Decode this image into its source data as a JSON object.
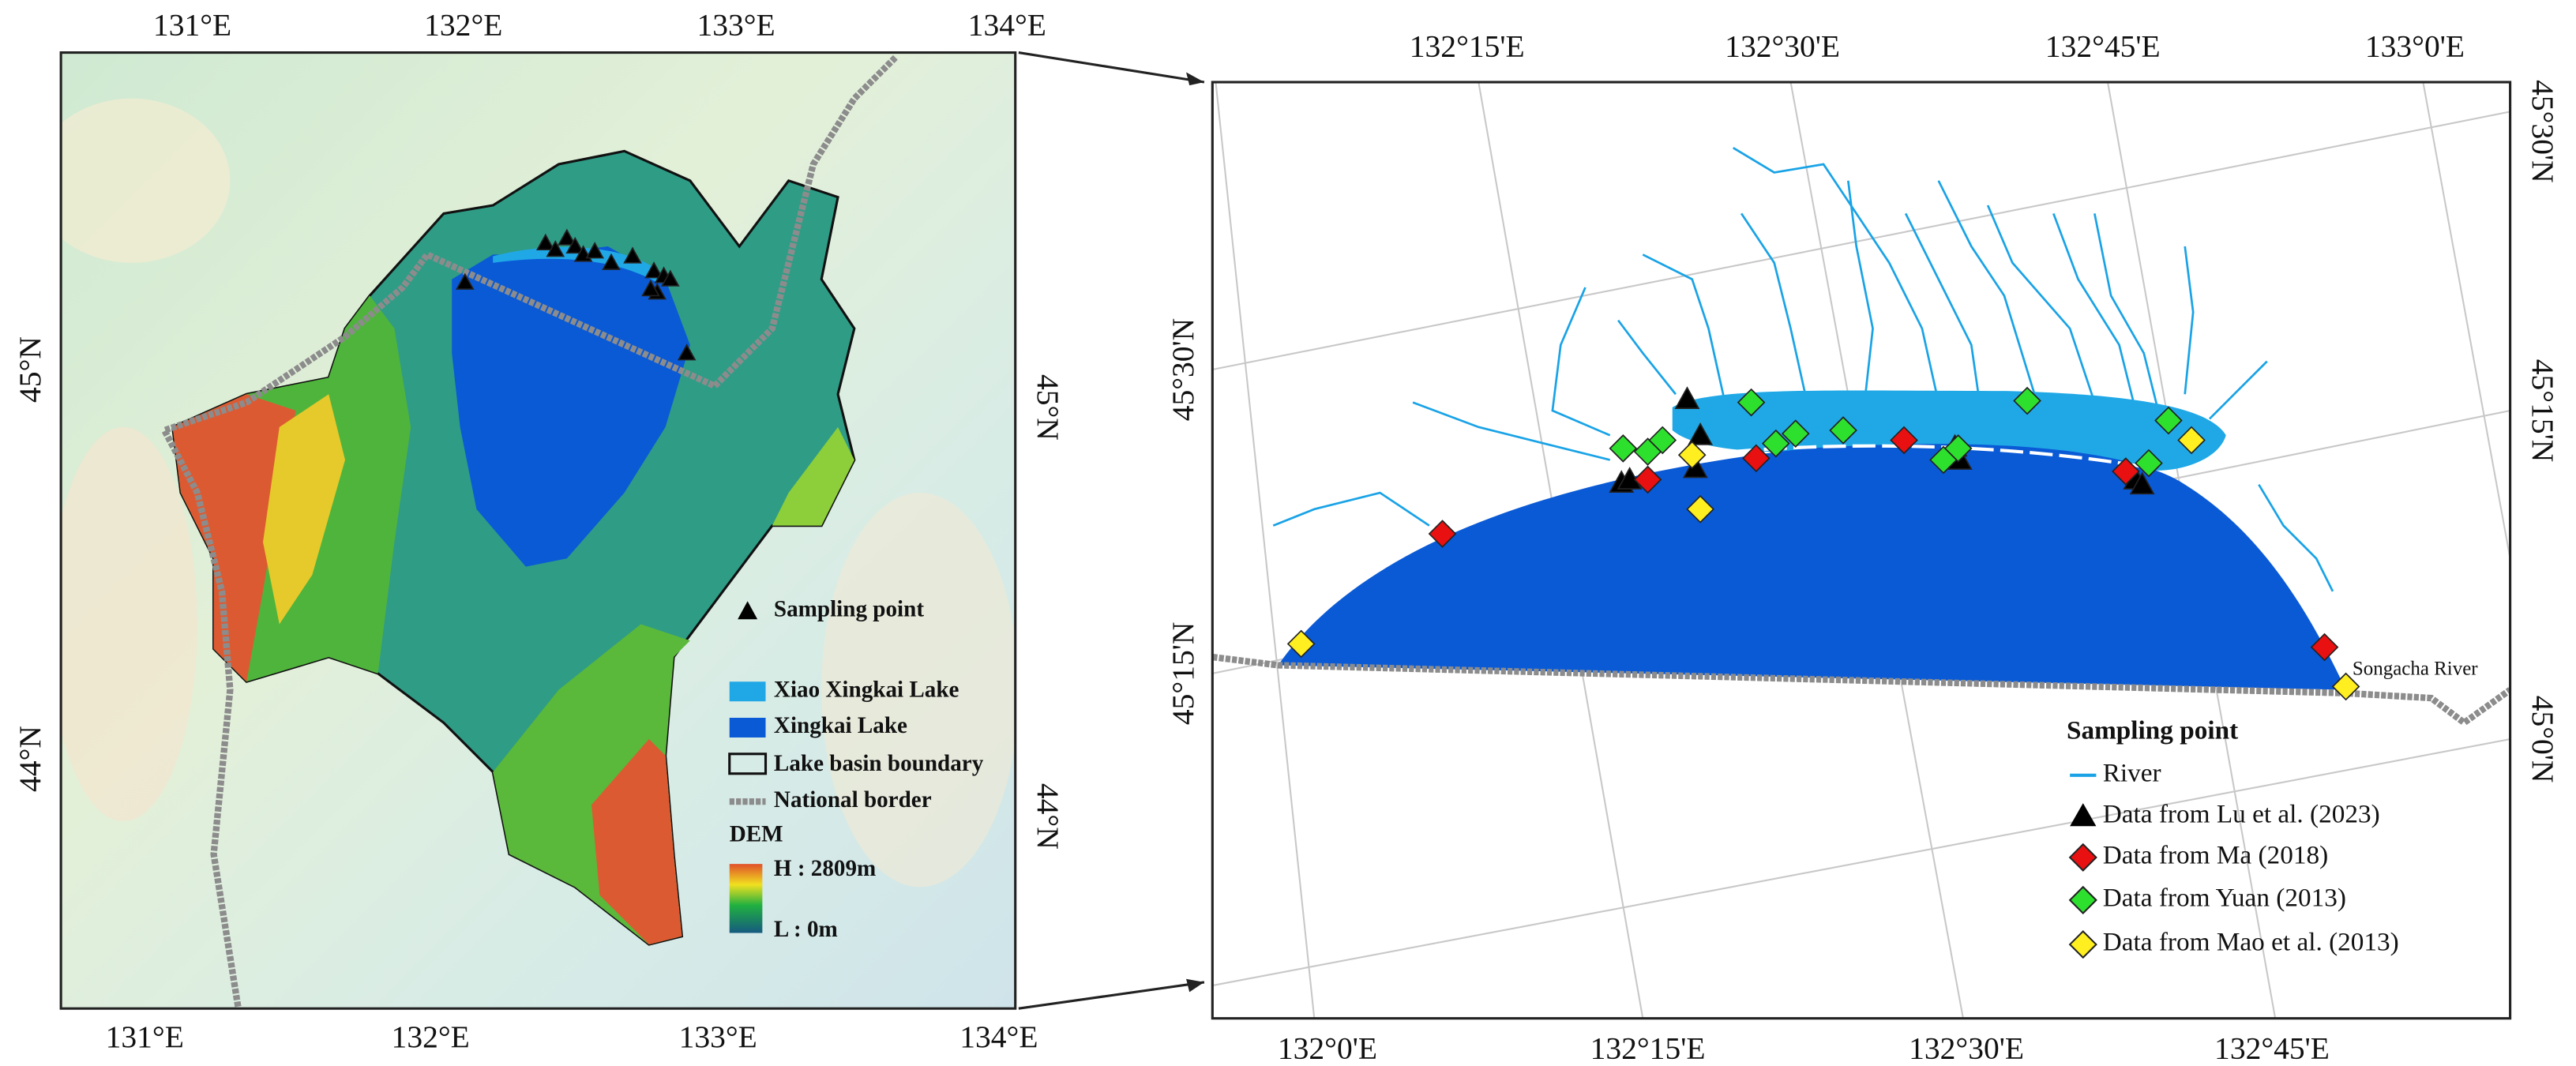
{
  "left_map": {
    "top_labels": [
      "131°E",
      "132°E",
      "133°E",
      "134°E"
    ],
    "bottom_labels": [
      "131°E",
      "132°E",
      "133°E",
      "134°E"
    ],
    "left_labels": [
      "45°N",
      "44°N"
    ],
    "right_labels": [
      "45°N",
      "44°N"
    ],
    "legend": {
      "items": [
        "Sampling point",
        "Xiao Xingkai Lake",
        "Xingkai Lake",
        "Lake basin boundary",
        "National border"
      ],
      "dem_title": "DEM",
      "dem_high": "H : 2809m",
      "dem_low": "L : 0m"
    }
  },
  "right_map": {
    "top_labels": [
      "132°15'E",
      "132°30'E",
      "132°45'E",
      "133°0'E"
    ],
    "bottom_labels": [
      "132°0'E",
      "132°15'E",
      "132°30'E",
      "132°45'E"
    ],
    "left_labels": [
      "45°30'N",
      "45°15'N"
    ],
    "right_labels": [
      "45°30'N",
      "45°15'N",
      "45°0'N"
    ],
    "river_label": "Songacha River",
    "legend": {
      "title": "Sampling point",
      "items": [
        "River",
        "Data from Lu et al. (2023)",
        "Data from Ma (2018)",
        "Data from Yuan (2013)",
        "Data from Mao et al. (2013)"
      ]
    }
  }
}
